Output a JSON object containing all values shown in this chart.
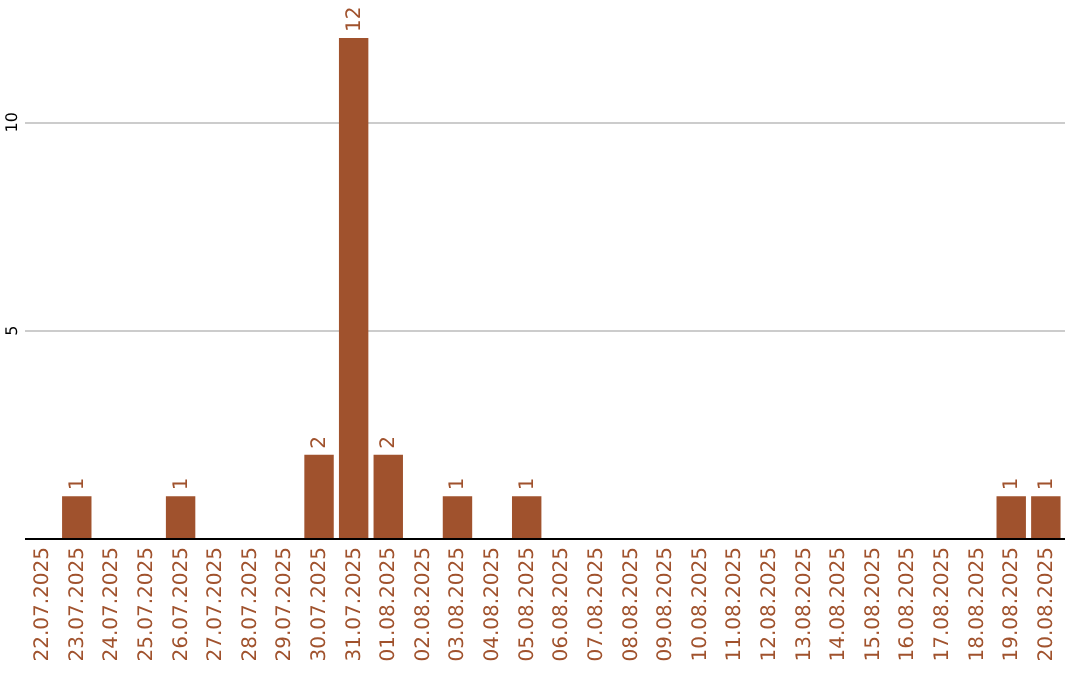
{
  "chart_data": {
    "type": "bar",
    "categories": [
      "22.07.2025",
      "23.07.2025",
      "24.07.2025",
      "25.07.2025",
      "26.07.2025",
      "27.07.2025",
      "28.07.2025",
      "29.07.2025",
      "30.07.2025",
      "31.07.2025",
      "01.08.2025",
      "02.08.2025",
      "03.08.2025",
      "04.08.2025",
      "05.08.2025",
      "06.08.2025",
      "07.08.2025",
      "08.08.2025",
      "09.08.2025",
      "10.08.2025",
      "11.08.2025",
      "12.08.2025",
      "13.08.2025",
      "14.08.2025",
      "15.08.2025",
      "16.08.2025",
      "17.08.2025",
      "18.08.2025",
      "19.08.2025",
      "20.08.2025"
    ],
    "values": [
      0,
      1,
      0,
      0,
      1,
      0,
      0,
      0,
      2,
      12,
      2,
      0,
      1,
      0,
      1,
      0,
      0,
      0,
      0,
      0,
      0,
      0,
      0,
      0,
      0,
      0,
      0,
      0,
      1,
      1
    ],
    "value_labels": [
      null,
      "1",
      null,
      null,
      "1",
      null,
      null,
      null,
      "2",
      "12",
      "2",
      null,
      "1",
      null,
      "1",
      null,
      null,
      null,
      null,
      null,
      null,
      null,
      null,
      null,
      null,
      null,
      null,
      null,
      "1",
      "1"
    ],
    "color": "#a0522d",
    "ylim": [
      0,
      12
    ],
    "yticks": [
      5,
      10
    ],
    "grid": "y"
  }
}
